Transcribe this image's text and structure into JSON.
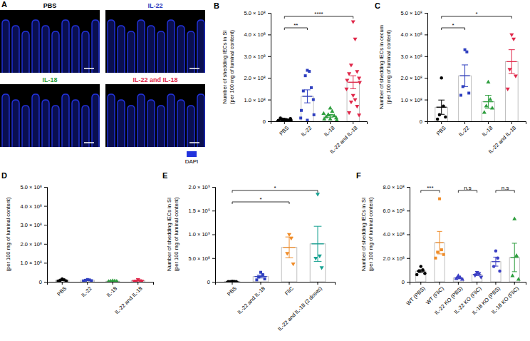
{
  "image_panel": {
    "label": "A",
    "images": [
      {
        "label": "PBS",
        "color": "#000000"
      },
      {
        "label": "IL-22",
        "color": "#2f3fbf"
      },
      {
        "label": "IL-18",
        "color": "#2e9e3e"
      },
      {
        "label": "IL-22 and IL-18",
        "color": "#e0284a"
      }
    ],
    "stain": {
      "label": "DAPI",
      "color": "#2233dd"
    }
  },
  "chart_data": [
    {
      "type": "bar",
      "panel": "B",
      "y_label": [
        "Number of shedding IECs in SI",
        "(per 100 mg of luminal content)"
      ],
      "ylim": [
        0,
        500000000
      ],
      "yticks": [
        0,
        {
          "value": 100000000,
          "label": "1.0 × 10⁸"
        },
        {
          "value": 200000000,
          "label": "2.0 × 10⁸"
        },
        {
          "value": 300000000,
          "label": "3.0 × 10⁸"
        },
        {
          "value": 400000000,
          "label": "4.0 × 10⁸"
        },
        {
          "value": 500000000,
          "label": "5.0 × 10⁸"
        }
      ],
      "series": [
        {
          "name": "PBS",
          "color": "#000000",
          "marker": "circle",
          "mean": 6000000,
          "error": 1500000,
          "values": [
            2000000,
            5000000,
            10000000,
            3000000,
            8000000,
            12000000,
            4000000,
            6000000,
            1000000,
            9000000,
            7000000,
            3000000,
            5000000,
            15000000
          ]
        },
        {
          "name": "IL-22",
          "color": "#2f3fbf",
          "marker": "square",
          "mean": 115000000,
          "error": 30000000,
          "values": [
            235000000,
            230000000,
            210000000,
            155000000,
            140000000,
            100000000,
            50000000,
            30000000,
            15000000,
            5000000
          ]
        },
        {
          "name": "IL-18",
          "color": "#2e9e3e",
          "marker": "triangle",
          "mean": 25000000,
          "error": 6000000,
          "values": [
            60000000,
            45000000,
            30000000,
            25000000,
            20000000,
            15000000,
            10000000,
            5000000,
            35000000,
            10000000
          ]
        },
        {
          "name": "IL-22 and IL-18",
          "color": "#e0284a",
          "marker": "triangle-down",
          "mean": 180000000,
          "error": 30000000,
          "values": [
            460000000,
            380000000,
            260000000,
            230000000,
            220000000,
            200000000,
            190000000,
            180000000,
            150000000,
            120000000,
            100000000,
            90000000,
            70000000,
            40000000,
            30000000
          ]
        }
      ],
      "annotations": [
        {
          "between": [
            "PBS",
            "IL-22"
          ],
          "text": "**"
        },
        {
          "between": [
            "PBS",
            "IL-22 and IL-18"
          ],
          "text": "****"
        }
      ]
    },
    {
      "type": "bar",
      "panel": "C",
      "y_label": [
        "Number of shedding IECs in cecum",
        "(per 100 mg of luminal content)"
      ],
      "ylim": [
        0,
        500000000
      ],
      "yticks": [
        0,
        {
          "value": 100000000,
          "label": "1.0 × 10⁸"
        },
        {
          "value": 200000000,
          "label": "2.0 × 10⁸"
        },
        {
          "value": 300000000,
          "label": "3.0 × 10⁸"
        },
        {
          "value": 400000000,
          "label": "4.0 × 10⁸"
        },
        {
          "value": 500000000,
          "label": "5.0 × 10⁸"
        }
      ],
      "series": [
        {
          "name": "PBS",
          "color": "#000000",
          "marker": "circle",
          "mean": 65000000,
          "error": 33000000,
          "values": [
            200000000,
            70000000,
            30000000,
            20000000,
            10000000
          ]
        },
        {
          "name": "IL-22",
          "color": "#2f3fbf",
          "marker": "square",
          "mean": 210000000,
          "error": 50000000,
          "values": [
            330000000,
            320000000,
            160000000,
            130000000,
            120000000
          ]
        },
        {
          "name": "IL-18",
          "color": "#2e9e3e",
          "marker": "triangle",
          "mean": 90000000,
          "error": 30000000,
          "values": [
            180000000,
            100000000,
            70000000,
            60000000,
            40000000
          ]
        },
        {
          "name": "IL-22 and IL-18",
          "color": "#e0284a",
          "marker": "triangle-down",
          "mean": 275000000,
          "error": 55000000,
          "values": [
            400000000,
            380000000,
            240000000,
            210000000,
            150000000
          ]
        }
      ],
      "annotations": [
        {
          "between": [
            "PBS",
            "IL-22"
          ],
          "text": "*"
        },
        {
          "between": [
            "PBS",
            "IL-22 and IL-18"
          ],
          "text": "*"
        }
      ]
    },
    {
      "type": "bar",
      "panel": "D",
      "y_label": [
        "(per 100 mg of luminal content)"
      ],
      "ylim": [
        0,
        500000000
      ],
      "yticks": [
        0,
        {
          "value": 100000000,
          "label": "1.0 × 10⁸"
        },
        {
          "value": 200000000,
          "label": "2.0 × 10⁸"
        },
        {
          "value": 300000000,
          "label": "3.0 × 10⁸"
        },
        {
          "value": 400000000,
          "label": "4.0 × 10⁸"
        },
        {
          "value": 500000000,
          "label": "5.0 × 10⁸"
        }
      ],
      "series": [
        {
          "name": "PBS",
          "color": "#000000",
          "marker": "circle",
          "mean": 8000000,
          "error": 2000000,
          "values": [
            15000000,
            10000000,
            8000000,
            5000000,
            4000000
          ]
        },
        {
          "name": "IL-22",
          "color": "#2f3fbf",
          "marker": "square",
          "mean": 8000000,
          "error": 1500000,
          "values": [
            12000000,
            10000000,
            8000000,
            6000000,
            5000000
          ]
        },
        {
          "name": "IL-18",
          "color": "#2e9e3e",
          "marker": "triangle",
          "mean": 3000000,
          "error": 1000000,
          "values": [
            5000000,
            4000000,
            3000000,
            2000000,
            1000000
          ]
        },
        {
          "name": "IL-22 and IL-18",
          "color": "#e0284a",
          "marker": "triangle-down",
          "mean": 6000000,
          "error": 2000000,
          "values": [
            12000000,
            7000000,
            5000000,
            4000000,
            3000000
          ]
        }
      ]
    },
    {
      "type": "bar",
      "panel": "E",
      "y_label": [
        "Number of shedding IECs in SI",
        "(per 100 mg of luminal content)"
      ],
      "ylim": [
        0,
        2000000000
      ],
      "yticks": [
        0,
        {
          "value": 500000000,
          "label": "5.0 × 10⁸"
        },
        {
          "value": 1000000000,
          "label": "1.0 × 10⁹"
        },
        {
          "value": 1500000000,
          "label": "1.5 × 10⁹"
        },
        {
          "value": 2000000000,
          "label": "2.0 × 10⁹"
        }
      ],
      "series": [
        {
          "name": "PBS",
          "color": "#000000",
          "marker": "circle",
          "mean": 5600000,
          "error": 1500000,
          "values": [
            10000000,
            8000000,
            5000000,
            3000000,
            2000000
          ]
        },
        {
          "name": "IL-22 and IL-18",
          "color": "#2f3fbf",
          "marker": "square",
          "mean": 110000000,
          "error": 30000000,
          "values": [
            200000000,
            150000000,
            100000000,
            60000000,
            40000000
          ]
        },
        {
          "name": "FliC",
          "color": "#f08c28",
          "marker": "triangle-down",
          "mean": 725000000,
          "error": 220000000,
          "values": [
            1000000000,
            920000000,
            600000000,
            380000000
          ]
        },
        {
          "name": "IL-22 and IL-18 (2 doses)",
          "color": "#14a090",
          "marker": "triangle-down",
          "mean": 800000000,
          "error": 370000000,
          "values": [
            1850000000,
            550000000,
            500000000,
            300000000
          ]
        }
      ],
      "annotations": [
        {
          "between": [
            "PBS",
            "FliC"
          ],
          "text": "*"
        },
        {
          "between": [
            "PBS",
            "IL-22 and IL-18 (2 doses)"
          ],
          "text": "*"
        }
      ]
    },
    {
      "type": "bar",
      "panel": "F",
      "y_label": [
        "Number of shedding IECs in SI",
        "(per 100 mg of luminal content)"
      ],
      "ylim": [
        0,
        800000000
      ],
      "yticks": [
        0,
        {
          "value": 200000000,
          "label": "2.0 × 10⁸"
        },
        {
          "value": 400000000,
          "label": "4.0 × 10⁸"
        },
        {
          "value": 600000000,
          "label": "6.0 × 10⁸"
        },
        {
          "value": 800000000,
          "label": "8.0 × 10⁸"
        }
      ],
      "series": [
        {
          "name": "WT (PBS)",
          "color": "#000000",
          "marker": "circle",
          "mean": 90000000,
          "error": 12000000,
          "values": [
            130000000,
            100000000,
            90000000,
            70000000,
            60000000
          ]
        },
        {
          "name": "WT (FliC)",
          "color": "#f08c28",
          "marker": "square",
          "mean": 330000000,
          "error": 95000000,
          "values": [
            700000000,
            270000000,
            250000000,
            230000000,
            200000000
          ]
        },
        {
          "name": "IL-22 KO (PBS)",
          "color": "#3b3fc4",
          "marker": "triangle",
          "mean": 32000000,
          "error": 7000000,
          "values": [
            50000000,
            35000000,
            25000000,
            20000000
          ]
        },
        {
          "name": "IL-22 KO (FliC)",
          "color": "#3b3fc4",
          "marker": "triangle-down",
          "mean": 61000000,
          "error": 9000000,
          "values": [
            80000000,
            70000000,
            55000000,
            40000000
          ]
        },
        {
          "name": "IL-18 KO (PBS)",
          "color": "#3b3fc4",
          "marker": "circle",
          "mean": 170000000,
          "error": 38000000,
          "values": [
            260000000,
            200000000,
            130000000,
            90000000
          ]
        },
        {
          "name": "IL-18 KO (FliC)",
          "color": "#2e9e3e",
          "marker": "triangle",
          "mean": 205000000,
          "error": 120000000,
          "values": [
            530000000,
            220000000,
            50000000,
            20000000
          ]
        }
      ],
      "annotations": [
        {
          "between": [
            "WT (PBS)",
            "WT (FliC)"
          ],
          "text": "***"
        },
        {
          "between": [
            "IL-22 KO (PBS)",
            "IL-22 KO (FliC)"
          ],
          "text": "n.s"
        },
        {
          "between": [
            "IL-18 KO (PBS)",
            "IL-18 KO (FliC)"
          ],
          "text": "n.s"
        }
      ]
    }
  ]
}
